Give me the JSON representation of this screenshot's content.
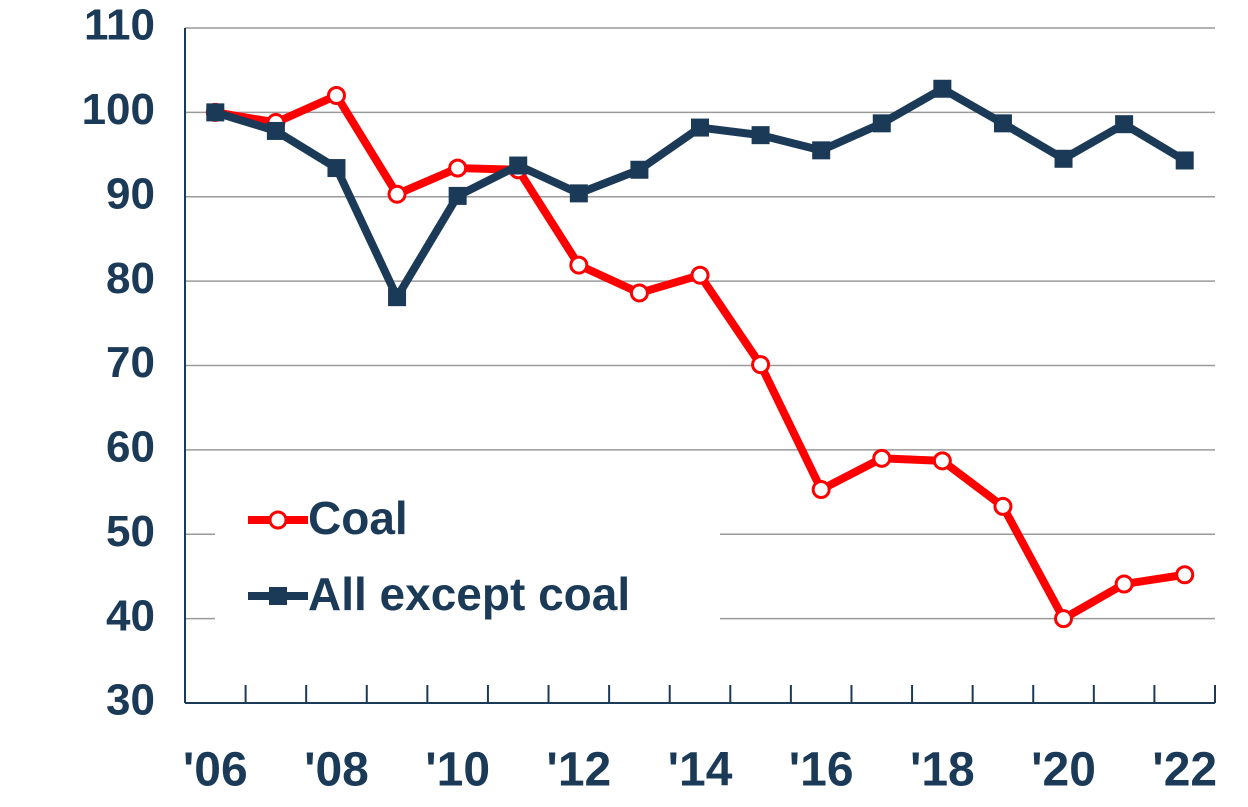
{
  "chart_data": {
    "type": "line",
    "categories": [
      "'06",
      null,
      "'08",
      null,
      "'10",
      null,
      "'12",
      null,
      "'14",
      null,
      "'16",
      null,
      "'18",
      null,
      "'20",
      null,
      "'22"
    ],
    "series": [
      {
        "name": "Coal",
        "color": "#ff0000",
        "marker": "circle",
        "values": [
          100,
          98.8,
          102,
          90.3,
          93.4,
          93.2,
          81.9,
          78.6,
          80.7,
          70.1,
          55.3,
          59,
          58.7,
          53.3,
          40,
          44.1,
          45.2
        ]
      },
      {
        "name": "All except coal",
        "color": "#1b3a57",
        "marker": "square",
        "values": [
          100,
          97.8,
          93.4,
          78.1,
          90.1,
          93.7,
          90.4,
          93.2,
          98.2,
          97.3,
          95.5,
          98.7,
          102.8,
          98.7,
          94.5,
          98.6,
          94.3
        ]
      }
    ],
    "ylim": [
      30,
      110
    ],
    "yticks": [
      30,
      40,
      50,
      60,
      70,
      80,
      90,
      100,
      110
    ],
    "grid": true,
    "legend": "lower left"
  }
}
